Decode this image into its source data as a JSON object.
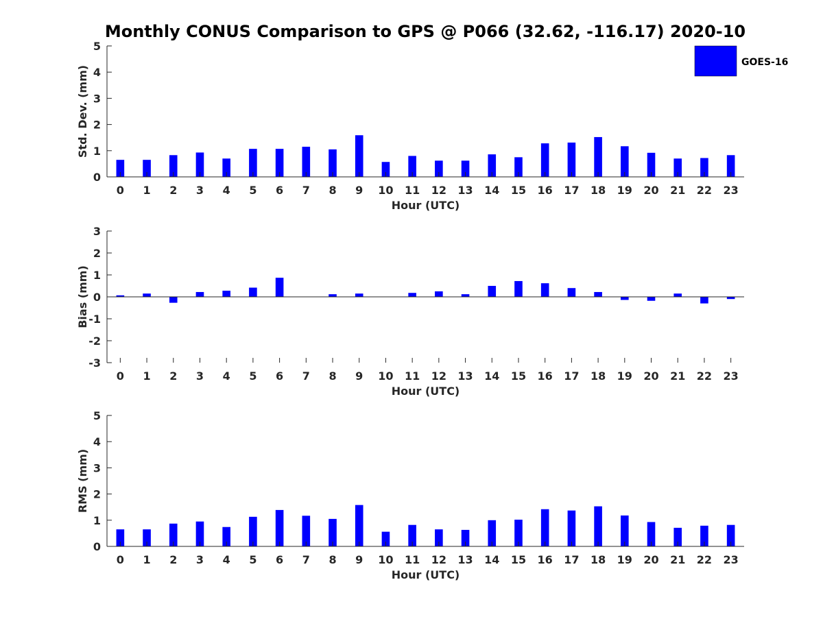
{
  "figure": {
    "title": "Monthly CONUS Comparison to GPS @ P066 (32.62, -116.17) 2020-10"
  },
  "legend": {
    "label": "GOES-16",
    "color": "#0000ff",
    "placement": "top-right"
  },
  "colors": {
    "bar": "#0000ff",
    "axis": "#262626"
  },
  "chart_data": [
    {
      "type": "bar",
      "name": "std",
      "title": "Monthly CONUS Comparison to GPS @ P066 (32.62, -116.17) 2020-10",
      "xlabel": "Hour (UTC)",
      "ylabel": "Std. Dev. (mm)",
      "categories": [
        "0",
        "1",
        "2",
        "3",
        "4",
        "5",
        "6",
        "7",
        "8",
        "9",
        "10",
        "11",
        "12",
        "13",
        "14",
        "15",
        "16",
        "17",
        "18",
        "19",
        "20",
        "21",
        "22",
        "23"
      ],
      "series": [
        {
          "name": "GOES-16",
          "values": [
            0.65,
            0.65,
            0.83,
            0.93,
            0.7,
            1.07,
            1.07,
            1.15,
            1.05,
            1.59,
            0.57,
            0.8,
            0.62,
            0.62,
            0.86,
            0.75,
            1.28,
            1.31,
            1.52,
            1.17,
            0.92,
            0.7,
            0.72,
            0.83
          ]
        }
      ],
      "yticks": [
        "0",
        "1",
        "2",
        "3",
        "4",
        "5"
      ],
      "ylim": [
        0,
        5
      ],
      "xlim": [
        -0.5,
        23.5
      ],
      "legend": true
    },
    {
      "type": "bar",
      "name": "bias",
      "title": "",
      "xlabel": "Hour (UTC)",
      "ylabel": "Bias (mm)",
      "categories": [
        "0",
        "1",
        "2",
        "3",
        "4",
        "5",
        "6",
        "7",
        "8",
        "9",
        "10",
        "11",
        "12",
        "13",
        "14",
        "15",
        "16",
        "17",
        "18",
        "19",
        "20",
        "21",
        "22",
        "23"
      ],
      "series": [
        {
          "name": "GOES-16",
          "values": [
            0.07,
            0.15,
            -0.27,
            0.22,
            0.28,
            0.42,
            0.87,
            0.0,
            0.12,
            0.15,
            0.0,
            0.18,
            0.25,
            0.12,
            0.5,
            0.72,
            0.62,
            0.4,
            0.22,
            -0.14,
            -0.18,
            0.15,
            -0.3,
            -0.1
          ]
        }
      ],
      "yticks": [
        "-3",
        "-2",
        "-1",
        "0",
        "1",
        "2",
        "3"
      ],
      "ylim": [
        -3,
        3
      ],
      "xlim": [
        -0.5,
        23.5
      ],
      "legend": false
    },
    {
      "type": "bar",
      "name": "rms",
      "title": "",
      "xlabel": "Hour (UTC)",
      "ylabel": "RMS (mm)",
      "categories": [
        "0",
        "1",
        "2",
        "3",
        "4",
        "5",
        "6",
        "7",
        "8",
        "9",
        "10",
        "11",
        "12",
        "13",
        "14",
        "15",
        "16",
        "17",
        "18",
        "19",
        "20",
        "21",
        "22",
        "23"
      ],
      "series": [
        {
          "name": "GOES-16",
          "values": [
            0.65,
            0.65,
            0.87,
            0.95,
            0.74,
            1.13,
            1.39,
            1.17,
            1.05,
            1.58,
            0.56,
            0.82,
            0.65,
            0.63,
            1.0,
            1.02,
            1.42,
            1.37,
            1.53,
            1.18,
            0.93,
            0.71,
            0.79,
            0.82
          ]
        }
      ],
      "yticks": [
        "0",
        "1",
        "2",
        "3",
        "4",
        "5"
      ],
      "ylim": [
        0,
        5
      ],
      "xlim": [
        -0.5,
        23.5
      ],
      "legend": false
    }
  ]
}
